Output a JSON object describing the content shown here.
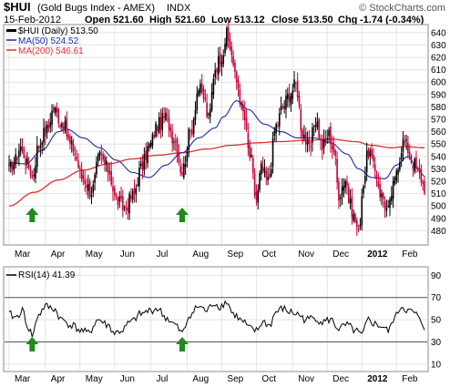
{
  "header": {
    "symbol": "$HUI",
    "name": "(Gold Bugs Index - AMEX)",
    "exchange": "INDX",
    "date": "15-Feb-2012",
    "open_label": "Open",
    "open": "521.60",
    "high_label": "High",
    "high": "521.60",
    "low_label": "Low",
    "low": "513.12",
    "close_label": "Close",
    "close": "513.50",
    "chg_label": "Chg",
    "chg": "-1.74 (-0.34%)",
    "brand": "© StockCharts.com"
  },
  "colors": {
    "up_bar": "#000000",
    "down_bar": "#cc0033",
    "ma50": "#1a2aa8",
    "ma200": "#e03030",
    "arrow": "#1f8a1f",
    "grid": "#e3e3e3"
  },
  "chart_data": [
    {
      "type": "candlestick",
      "legend": {
        "price": "$HUI (Daily) 513.50",
        "ma50": "MA(50) 524.52",
        "ma200": "MA(200) 546.61",
        "placement": "top-left"
      },
      "ylim": [
        470,
        645
      ],
      "yticks": [
        480,
        490,
        500,
        510,
        520,
        530,
        540,
        550,
        560,
        570,
        580,
        590,
        600,
        610,
        620,
        630,
        640
      ],
      "months": [
        "Mar",
        "Apr",
        "May",
        "Jun",
        "Jul",
        "Aug",
        "Sep",
        "Oct",
        "Nov",
        "Dec",
        "2012",
        "Feb"
      ],
      "month_index": [
        0,
        22,
        43,
        64,
        86,
        108,
        129,
        150,
        172,
        193,
        214,
        235
      ],
      "grid": true,
      "annotations": [
        "up-arrow",
        "up-arrow"
      ],
      "annotation_index": [
        14,
        105
      ],
      "close_anchors": [
        [
          0,
          528
        ],
        [
          3,
          535
        ],
        [
          7,
          548
        ],
        [
          12,
          532
        ],
        [
          14,
          524
        ],
        [
          18,
          550
        ],
        [
          22,
          560
        ],
        [
          27,
          578
        ],
        [
          32,
          568
        ],
        [
          38,
          548
        ],
        [
          45,
          522
        ],
        [
          50,
          512
        ],
        [
          55,
          540
        ],
        [
          60,
          530
        ],
        [
          65,
          505
        ],
        [
          70,
          498
        ],
        [
          75,
          508
        ],
        [
          80,
          530
        ],
        [
          85,
          548
        ],
        [
          90,
          565
        ],
        [
          95,
          572
        ],
        [
          100,
          555
        ],
        [
          105,
          528
        ],
        [
          110,
          560
        ],
        [
          115,
          595
        ],
        [
          118,
          588
        ],
        [
          121,
          570
        ],
        [
          125,
          612
        ],
        [
          129,
          622
        ],
        [
          132,
          638
        ],
        [
          134,
          628
        ],
        [
          138,
          600
        ],
        [
          142,
          575
        ],
        [
          146,
          540
        ],
        [
          150,
          505
        ],
        [
          153,
          530
        ],
        [
          157,
          520
        ],
        [
          162,
          565
        ],
        [
          166,
          580
        ],
        [
          170,
          590
        ],
        [
          174,
          598
        ],
        [
          178,
          560
        ],
        [
          182,
          545
        ],
        [
          186,
          570
        ],
        [
          190,
          548
        ],
        [
          194,
          558
        ],
        [
          197,
          545
        ],
        [
          200,
          510
        ],
        [
          204,
          522
        ],
        [
          207,
          500
        ],
        [
          210,
          488
        ],
        [
          212,
          478
        ],
        [
          215,
          520
        ],
        [
          218,
          545
        ],
        [
          222,
          528
        ],
        [
          226,
          508
        ],
        [
          230,
          496
        ],
        [
          233,
          515
        ],
        [
          236,
          535
        ],
        [
          239,
          552
        ],
        [
          242,
          546
        ],
        [
          245,
          535
        ],
        [
          249,
          525
        ],
        [
          252,
          515
        ]
      ],
      "ma50_anchors": [
        [
          0,
          535
        ],
        [
          10,
          534
        ],
        [
          20,
          545
        ],
        [
          30,
          560
        ],
        [
          35,
          562
        ],
        [
          45,
          555
        ],
        [
          55,
          547
        ],
        [
          65,
          537
        ],
        [
          75,
          527
        ],
        [
          85,
          523
        ],
        [
          95,
          533
        ],
        [
          105,
          543
        ],
        [
          115,
          555
        ],
        [
          125,
          563
        ],
        [
          130,
          572
        ],
        [
          138,
          585
        ],
        [
          145,
          578
        ],
        [
          155,
          566
        ],
        [
          165,
          560
        ],
        [
          175,
          555
        ],
        [
          185,
          555
        ],
        [
          195,
          551
        ],
        [
          205,
          542
        ],
        [
          212,
          530
        ],
        [
          220,
          523
        ],
        [
          228,
          522
        ],
        [
          235,
          533
        ],
        [
          242,
          540
        ],
        [
          248,
          530
        ],
        [
          252,
          524
        ]
      ],
      "ma200_anchors": [
        [
          0,
          500
        ],
        [
          15,
          511
        ],
        [
          30,
          521
        ],
        [
          45,
          529
        ],
        [
          60,
          534
        ],
        [
          75,
          538
        ],
        [
          90,
          541
        ],
        [
          105,
          543
        ],
        [
          120,
          546
        ],
        [
          135,
          549
        ],
        [
          150,
          551
        ],
        [
          165,
          552
        ],
        [
          180,
          553
        ],
        [
          195,
          554
        ],
        [
          210,
          552
        ],
        [
          220,
          549
        ],
        [
          232,
          547
        ],
        [
          240,
          548
        ],
        [
          252,
          547
        ]
      ]
    },
    {
      "type": "line",
      "legend": "RSI(14) 41.39",
      "ylim": [
        5,
        96
      ],
      "yticks": [
        10,
        30,
        50,
        70,
        90
      ],
      "reference_lines": [
        30,
        70
      ],
      "months": [
        "Mar",
        "Apr",
        "May",
        "Jun",
        "Jul",
        "Aug",
        "Sep",
        "Oct",
        "Nov",
        "Dec",
        "2012",
        "Feb"
      ],
      "month_index": [
        0,
        22,
        43,
        64,
        86,
        108,
        129,
        150,
        172,
        193,
        214,
        235
      ],
      "annotations": [
        "up-arrow",
        "up-arrow"
      ],
      "annotation_index": [
        14,
        105
      ],
      "rsi_anchors": [
        [
          0,
          55
        ],
        [
          4,
          52
        ],
        [
          8,
          58
        ],
        [
          12,
          42
        ],
        [
          14,
          36
        ],
        [
          18,
          55
        ],
        [
          22,
          62
        ],
        [
          27,
          60
        ],
        [
          32,
          50
        ],
        [
          38,
          45
        ],
        [
          44,
          40
        ],
        [
          48,
          38
        ],
        [
          54,
          50
        ],
        [
          60,
          45
        ],
        [
          64,
          38
        ],
        [
          68,
          40
        ],
        [
          74,
          48
        ],
        [
          80,
          55
        ],
        [
          85,
          58
        ],
        [
          90,
          60
        ],
        [
          95,
          52
        ],
        [
          100,
          46
        ],
        [
          105,
          38
        ],
        [
          110,
          55
        ],
        [
          115,
          62
        ],
        [
          120,
          58
        ],
        [
          124,
          65
        ],
        [
          128,
          62
        ],
        [
          132,
          66
        ],
        [
          136,
          55
        ],
        [
          142,
          48
        ],
        [
          146,
          42
        ],
        [
          150,
          40
        ],
        [
          154,
          48
        ],
        [
          158,
          45
        ],
        [
          162,
          57
        ],
        [
          166,
          60
        ],
        [
          170,
          57
        ],
        [
          175,
          55
        ],
        [
          180,
          50
        ],
        [
          185,
          52
        ],
        [
          190,
          48
        ],
        [
          195,
          50
        ],
        [
          200,
          42
        ],
        [
          205,
          45
        ],
        [
          210,
          40
        ],
        [
          214,
          36
        ],
        [
          218,
          50
        ],
        [
          222,
          46
        ],
        [
          226,
          44
        ],
        [
          230,
          40
        ],
        [
          234,
          52
        ],
        [
          238,
          62
        ],
        [
          242,
          58
        ],
        [
          246,
          56
        ],
        [
          250,
          48
        ],
        [
          252,
          43
        ]
      ]
    }
  ]
}
